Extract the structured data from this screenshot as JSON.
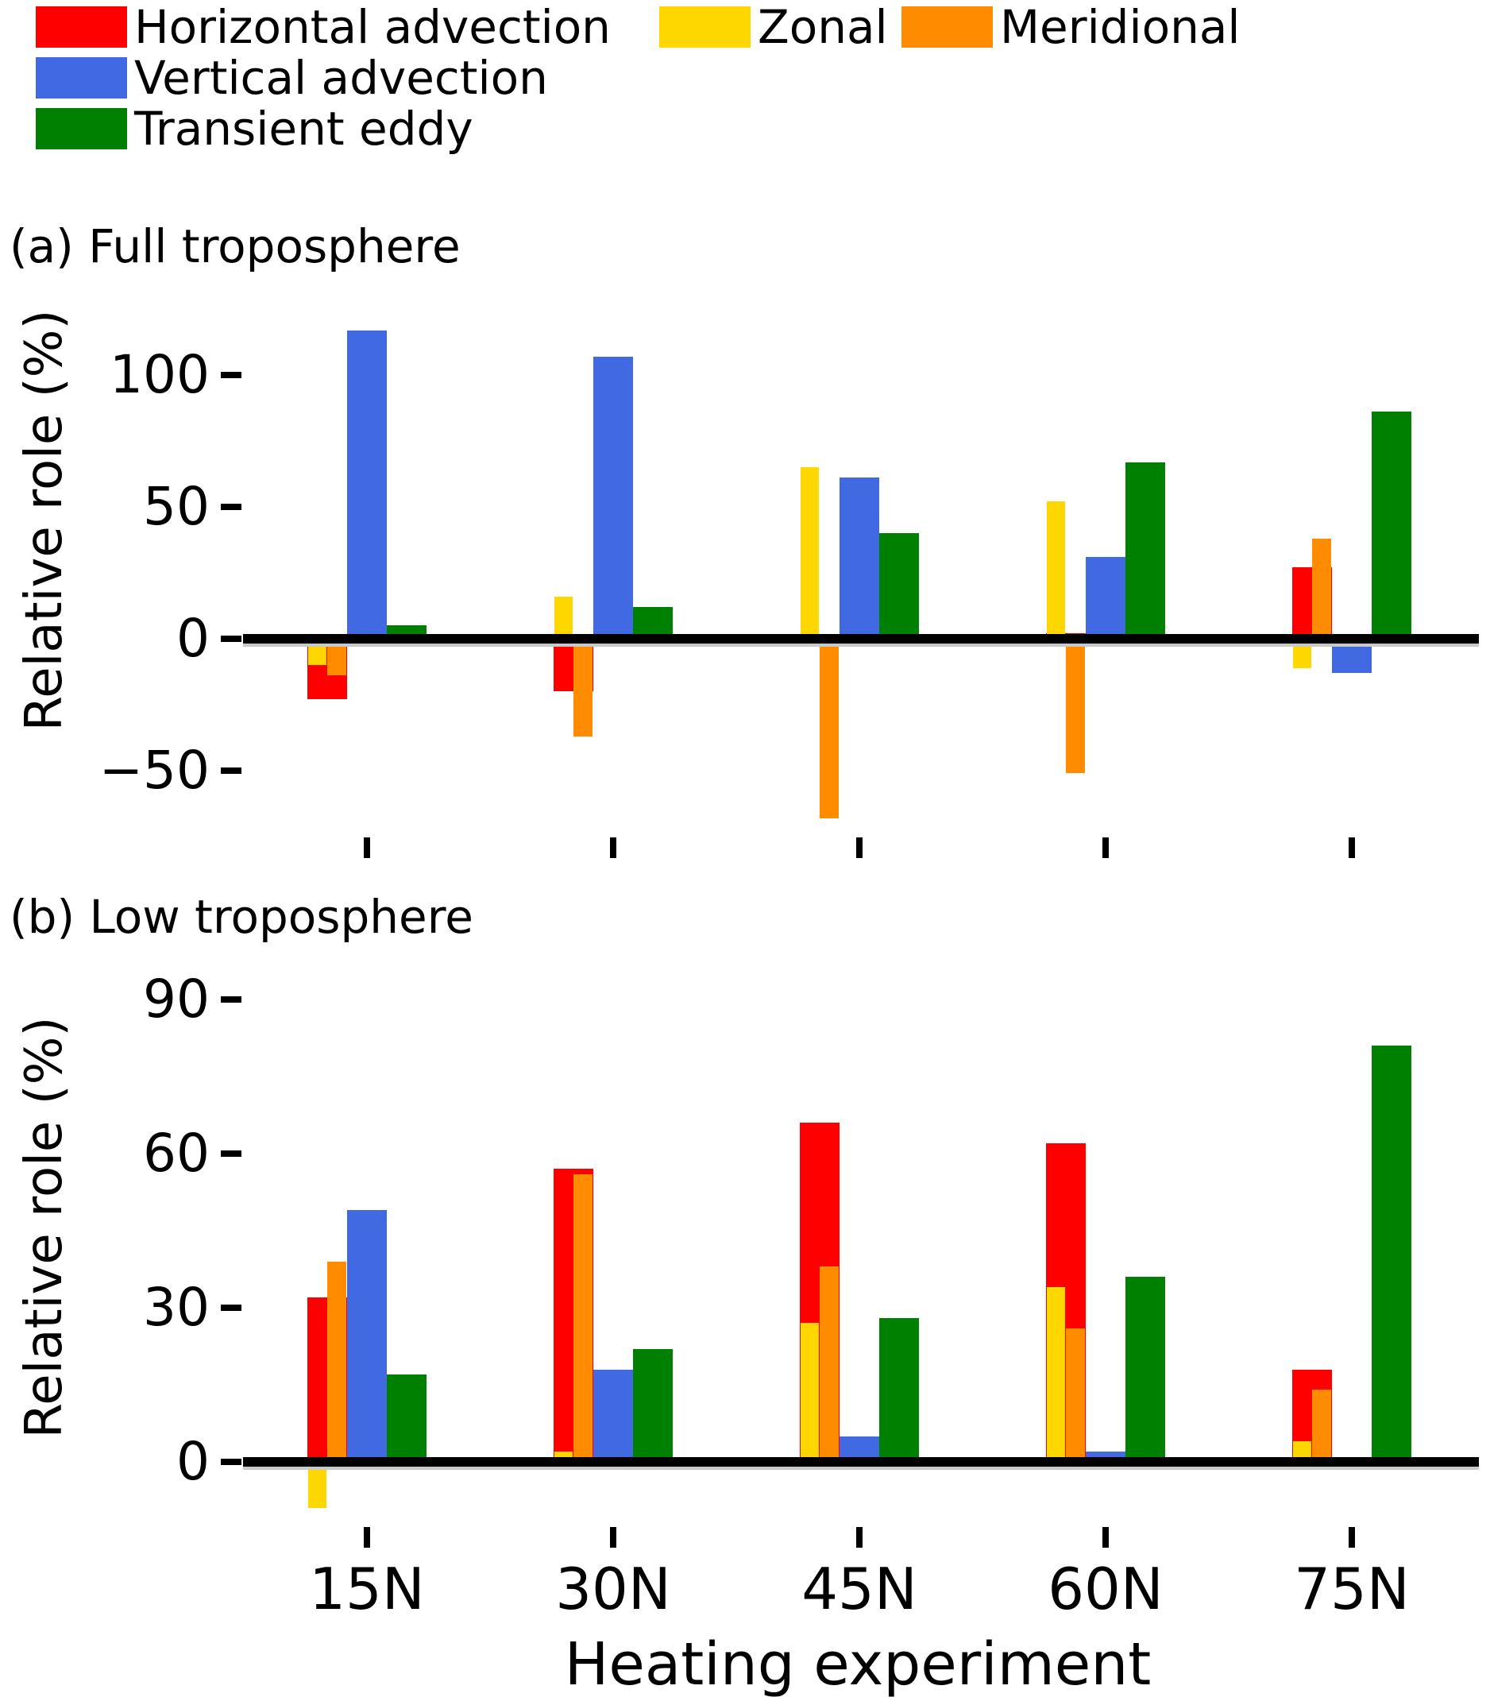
{
  "figure": {
    "background": "#FFFFFF",
    "axis_color": "#000000"
  },
  "legend": {
    "column1": [
      {
        "label": "Horizontal advection",
        "color": "#FF0000"
      },
      {
        "label": "Vertical advection",
        "color": "#4169E1"
      },
      {
        "label": "Transient eddy",
        "color": "#008000"
      }
    ],
    "column2": [
      {
        "label": "Zonal",
        "color": "#FFD700"
      },
      {
        "label": "Meridional",
        "color": "#FF8C00"
      }
    ]
  },
  "xlabel": "Heating experiment",
  "chart_data": [
    {
      "type": "bar",
      "id": "a",
      "title": "(a) Full troposphere",
      "ylabel": "Relative role (%)",
      "xlabel": "",
      "ylim": [
        -75,
        125
      ],
      "yticks": [
        100,
        50,
        0,
        -50
      ],
      "grid": false,
      "legend_position": "top-left-outside",
      "categories": [
        "15N",
        "30N",
        "45N",
        "60N",
        "75N"
      ],
      "series": [
        {
          "name": "Horizontal advection",
          "color": "#FF0000",
          "values": [
            -23,
            -20,
            -2,
            2,
            27
          ]
        },
        {
          "name": "Zonal",
          "color": "#FFD700",
          "values": [
            -10,
            16,
            65,
            52,
            -11
          ]
        },
        {
          "name": "Meridional",
          "color": "#FF8C00",
          "values": [
            -14,
            -37,
            -68,
            -51,
            38
          ]
        },
        {
          "name": "Vertical advection",
          "color": "#4169E1",
          "values": [
            117,
            107,
            61,
            31,
            -13
          ]
        },
        {
          "name": "Transient eddy",
          "color": "#008000",
          "values": [
            5,
            12,
            40,
            67,
            86
          ]
        }
      ]
    },
    {
      "type": "bar",
      "id": "b",
      "title": "(b) Low troposphere",
      "ylabel": "Relative role (%)",
      "xlabel": "Heating experiment",
      "ylim": [
        -15,
        95
      ],
      "yticks": [
        90,
        60,
        30,
        0
      ],
      "grid": false,
      "categories": [
        "15N",
        "30N",
        "45N",
        "60N",
        "75N"
      ],
      "series": [
        {
          "name": "Horizontal advection",
          "color": "#FF0000",
          "values": [
            32,
            57,
            66,
            62,
            18
          ]
        },
        {
          "name": "Zonal",
          "color": "#FFD700",
          "values": [
            -9,
            2,
            27,
            34,
            4
          ]
        },
        {
          "name": "Meridional",
          "color": "#FF8C00",
          "values": [
            39,
            56,
            38,
            26,
            14
          ]
        },
        {
          "name": "Vertical advection",
          "color": "#4169E1",
          "values": [
            49,
            18,
            5,
            2,
            0
          ]
        },
        {
          "name": "Transient eddy",
          "color": "#008000",
          "values": [
            17,
            22,
            28,
            36,
            81
          ]
        }
      ]
    }
  ]
}
